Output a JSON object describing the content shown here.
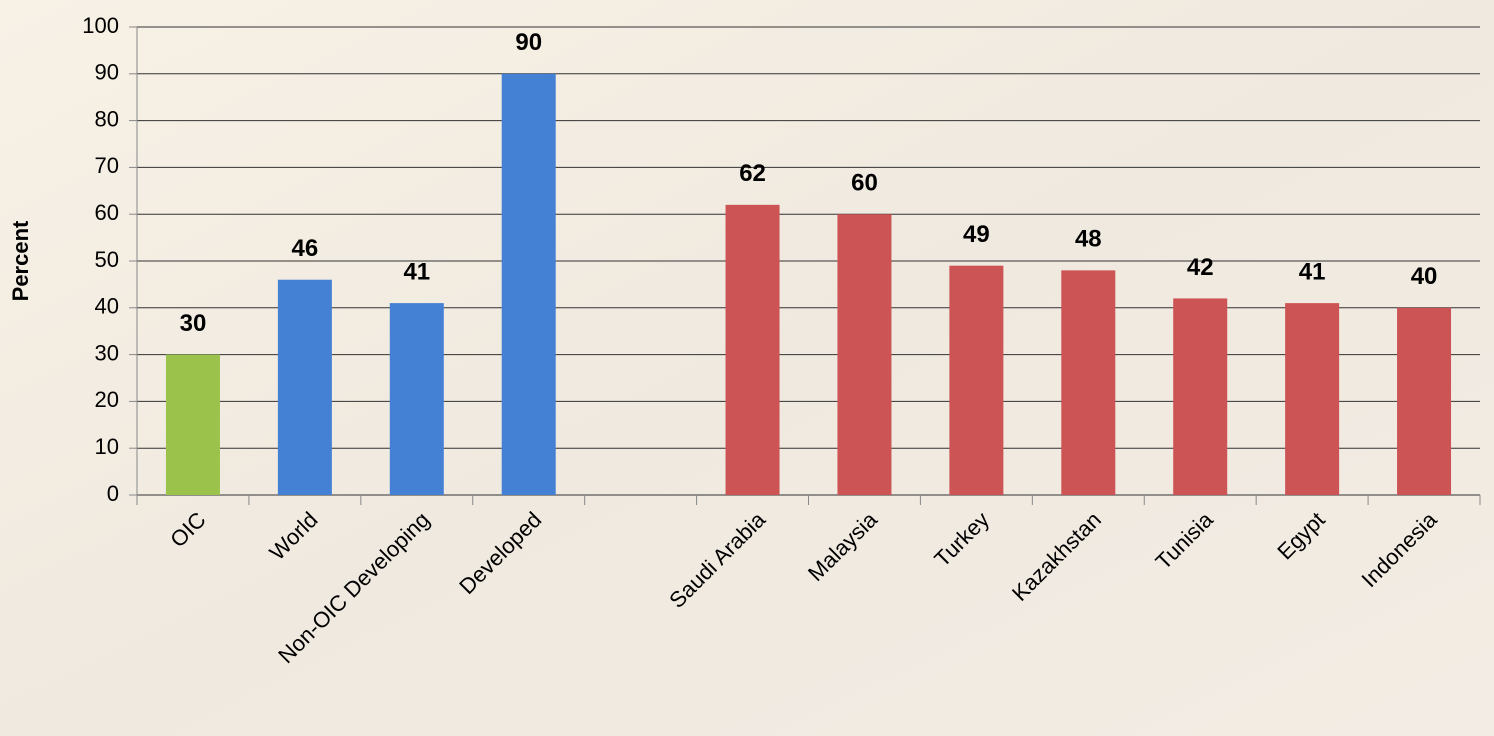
{
  "chart_data": {
    "type": "bar",
    "y_label": "Percent",
    "categories": [
      "OIC",
      "World",
      "Non-OIC Developing",
      "Developed",
      null,
      "Saudi Arabia",
      "Malaysia",
      "Turkey",
      "Kazakhstan",
      "Tunisia",
      "Egypt",
      "Indonesia"
    ],
    "values": [
      30,
      46,
      41,
      90,
      null,
      62,
      60,
      49,
      48,
      42,
      41,
      40
    ],
    "colors": [
      "#9bc34c",
      "#4480d3",
      "#4480d3",
      "#4480d3",
      null,
      "#cd5454",
      "#cd5454",
      "#cd5454",
      "#cd5454",
      "#cd5454",
      "#cd5454",
      "#cd5454"
    ],
    "ylim": [
      0,
      100
    ],
    "yticks": [
      0,
      10,
      20,
      30,
      40,
      50,
      60,
      70,
      80,
      90,
      100
    ],
    "grid": true
  }
}
